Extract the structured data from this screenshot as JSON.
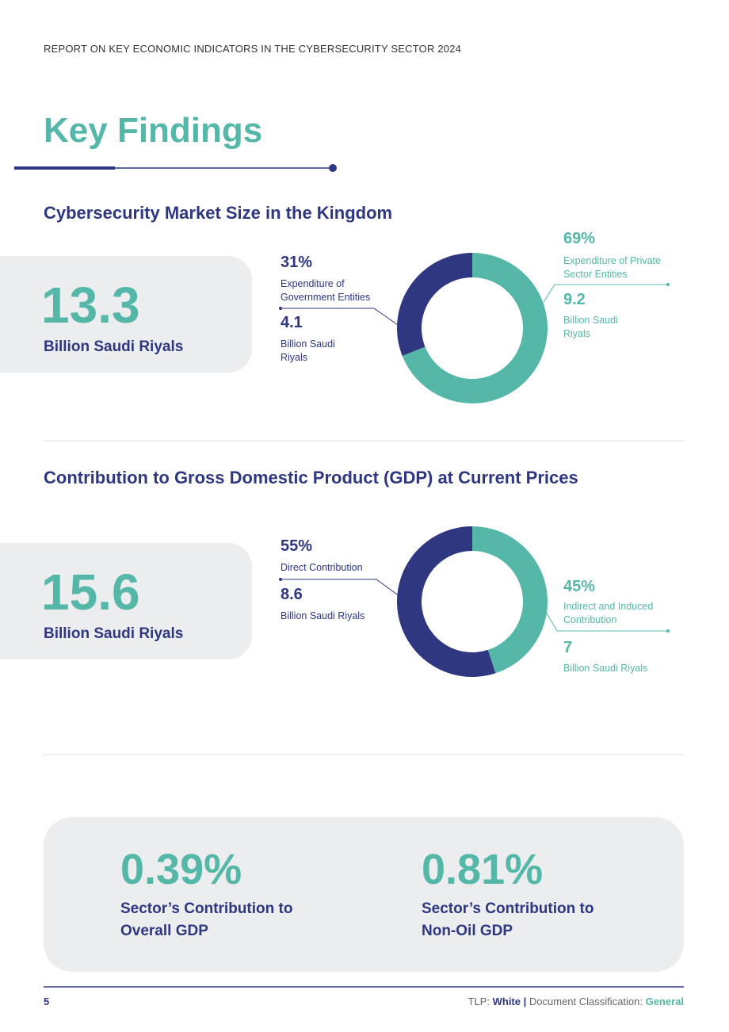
{
  "header": "REPORT ON KEY ECONOMIC INDICATORS IN THE CYBERSECURITY SECTOR 2024",
  "title": "Key Findings",
  "chart_data": [
    {
      "type": "pie",
      "title": "Cybersecurity Market Size in the Kingdom",
      "total": 13.3,
      "total_label": "Billion Saudi Riyals",
      "categories": [
        "Expenditure of Private Sector Entities",
        "Expenditure of Government Entities"
      ],
      "values": [
        69,
        31
      ],
      "value_labels": [
        "69%",
        "31%"
      ],
      "colors": [
        "#55b7a8",
        "#2e3780"
      ],
      "amounts": [
        9.2,
        4.1
      ],
      "amount_labels": [
        "Billion Saudi Riyals",
        "Billion Saudi Riyals"
      ]
    },
    {
      "type": "pie",
      "title": "Contribution to Gross Domestic Product (GDP) at Current Prices",
      "total": 15.6,
      "total_label": "Billion Saudi Riyals",
      "categories": [
        "Indirect and Induced Contribution",
        "Direct Contribution"
      ],
      "values": [
        45,
        55
      ],
      "value_labels": [
        "45%",
        "55%"
      ],
      "colors": [
        "#55b7a8",
        "#2e3780"
      ],
      "amounts": [
        7,
        8.6
      ],
      "amount_labels": [
        "Billion Saudi Riyals",
        "Billion Saudi Riyals"
      ]
    }
  ],
  "indicators": [
    {
      "value": "0.39%",
      "label": "Sector’s Contribution to Overall GDP"
    },
    {
      "value": "0.81%",
      "label": "Sector’s Contribution to Non-Oil GDP"
    }
  ],
  "footer": {
    "page": "5",
    "tlp_label": "TLP:",
    "tlp": "White",
    "separator": "|",
    "classification_label": "Document Classification:",
    "classification": "General"
  }
}
